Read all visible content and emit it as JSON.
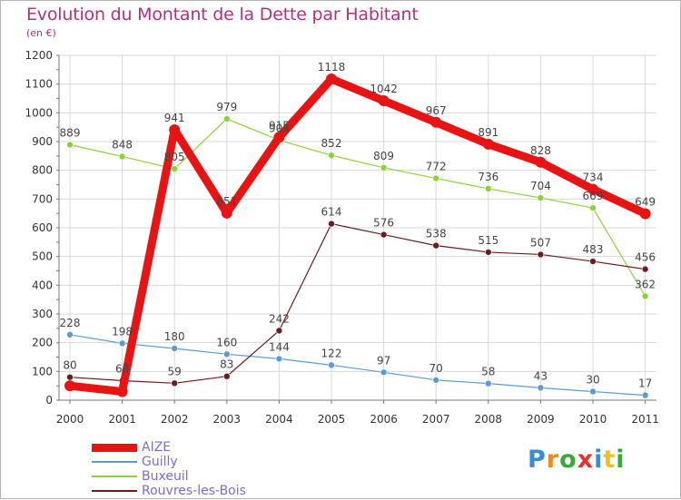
{
  "title": "Evolution du Montant de la Dette par Habitant",
  "subtitle": "(en €)",
  "logo": {
    "letters": [
      "P",
      "r",
      "o",
      "x",
      "i",
      "t",
      "i"
    ],
    "colors": [
      "#3b8bd4",
      "#f08a1e",
      "#3aa83a",
      "#e83030",
      "#3b8bd4",
      "#f0c020",
      "#3aa83a"
    ]
  },
  "chart_data": {
    "type": "line",
    "x": [
      "2000",
      "2001",
      "2002",
      "2003",
      "2004",
      "2005",
      "2006",
      "2007",
      "2008",
      "2009",
      "2010",
      "2011"
    ],
    "ylim": [
      0,
      1200
    ],
    "yticks": [
      0,
      100,
      200,
      300,
      400,
      500,
      600,
      700,
      800,
      900,
      1000,
      1100,
      1200
    ],
    "grid": true,
    "legend": "bottom-left",
    "series": [
      {
        "name": "AIZE",
        "color": "#e81414",
        "line_width": 9,
        "marker_r": 6,
        "labeled": [
          false,
          false,
          true,
          true,
          true,
          true,
          true,
          true,
          true,
          true,
          true,
          true
        ],
        "values": [
          50,
          30,
          941,
          651,
          915,
          1118,
          1042,
          967,
          891,
          828,
          734,
          649
        ]
      },
      {
        "name": "Guilly",
        "color": "#5c9ad6",
        "line_width": 1.2,
        "marker_r": 3.5,
        "labeled": [
          true,
          true,
          true,
          true,
          true,
          true,
          true,
          true,
          true,
          true,
          true,
          true
        ],
        "values": [
          228,
          198,
          180,
          160,
          144,
          122,
          97,
          70,
          58,
          43,
          30,
          17
        ]
      },
      {
        "name": "Buxeuil",
        "color": "#8ad23c",
        "line_width": 1.2,
        "marker_r": 3.5,
        "labeled": [
          true,
          true,
          true,
          true,
          true,
          true,
          true,
          true,
          true,
          true,
          true,
          true
        ],
        "values": [
          889,
          848,
          805,
          979,
          905,
          852,
          809,
          772,
          736,
          704,
          669,
          362
        ]
      },
      {
        "name": "Rouvres-les-Bois",
        "color": "#6b1c1c",
        "line_width": 1.2,
        "marker_r": 3.5,
        "labeled": [
          true,
          true,
          true,
          true,
          true,
          true,
          true,
          true,
          true,
          true,
          true,
          true
        ],
        "values": [
          80,
          68,
          59,
          83,
          242,
          614,
          576,
          538,
          515,
          507,
          483,
          456
        ]
      }
    ]
  }
}
